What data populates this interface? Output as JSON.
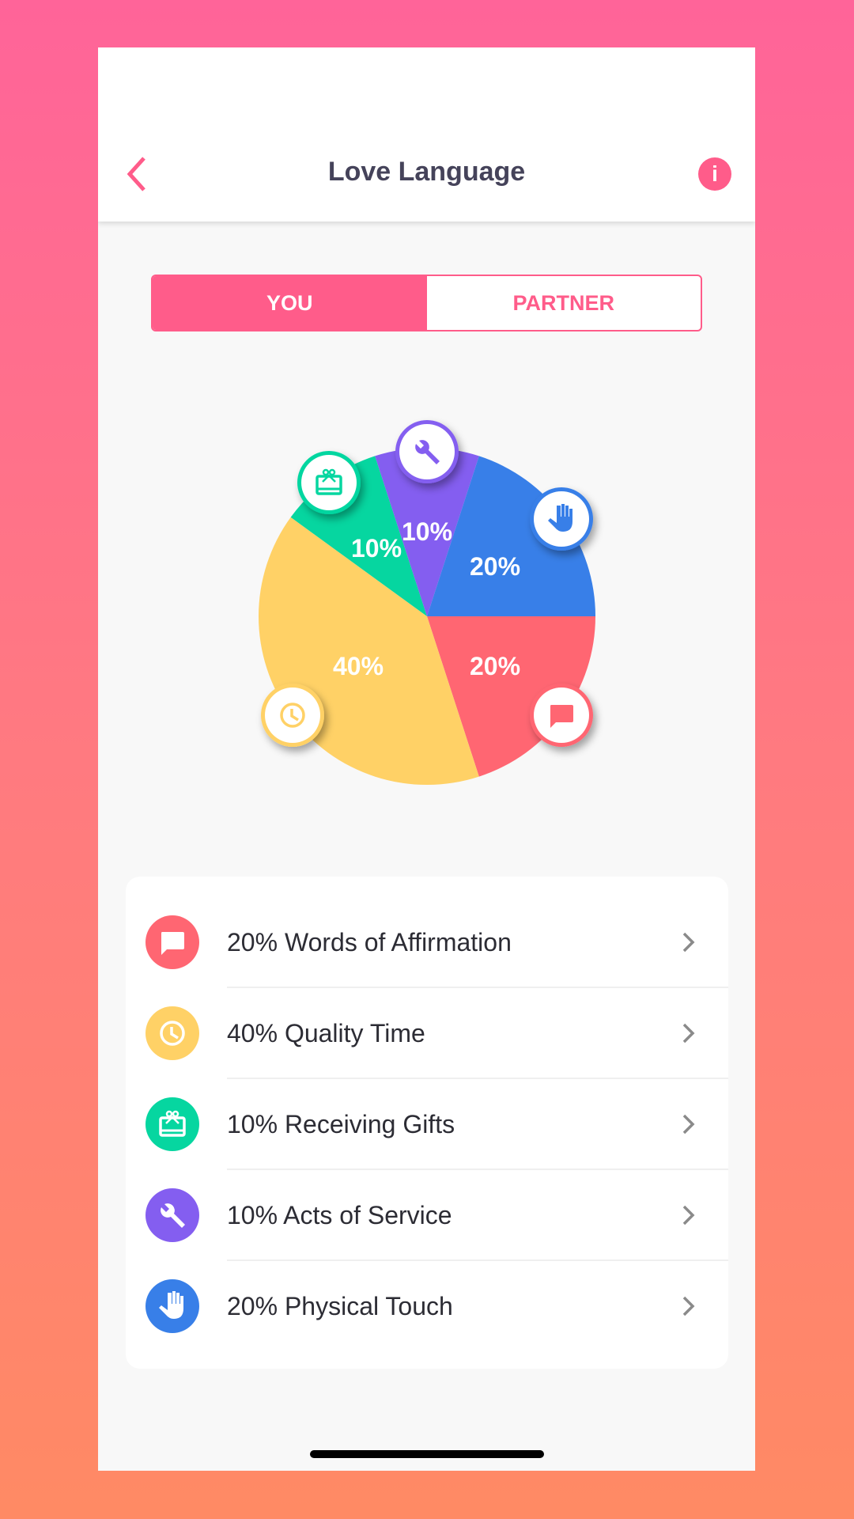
{
  "header": {
    "title": "Love Language",
    "back_icon": "chevron-left-icon",
    "info_icon": "info-icon"
  },
  "toggle": {
    "you_label": "YOU",
    "partner_label": "PARTNER",
    "selected": "YOU"
  },
  "colors": {
    "accent": "#FF5C8A"
  },
  "chart_data": {
    "type": "pie",
    "categories": [
      "Words of Affirmation",
      "Quality Time",
      "Receiving Gifts",
      "Acts of Service",
      "Physical Touch"
    ],
    "values": [
      20,
      40,
      10,
      10,
      20
    ],
    "labels": [
      "20%",
      "40%",
      "10%",
      "10%",
      "20%"
    ],
    "colors": [
      "#FF6672",
      "#FFD166",
      "#06D6A0",
      "#845EF0",
      "#387FE8"
    ],
    "icons": [
      "chat-bubble-icon",
      "clock-icon",
      "gift-icon",
      "wrench-icon",
      "hand-icon"
    ]
  },
  "list": [
    {
      "label": "20% Words of Affirmation",
      "icon": "chat-bubble-icon",
      "color": "#FF6672"
    },
    {
      "label": "40% Quality Time",
      "icon": "clock-icon",
      "color": "#FFD166"
    },
    {
      "label": "10% Receiving Gifts",
      "icon": "gift-icon",
      "color": "#06D6A0"
    },
    {
      "label": "10% Acts of Service",
      "icon": "wrench-icon",
      "color": "#845EF0"
    },
    {
      "label": "20% Physical Touch",
      "icon": "hand-icon",
      "color": "#387FE8"
    }
  ]
}
